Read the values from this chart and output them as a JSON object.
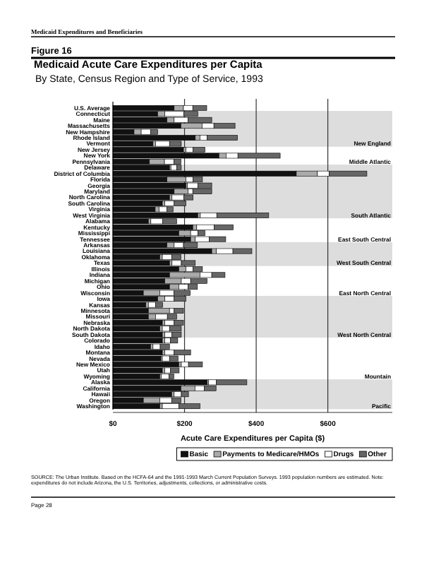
{
  "chart_data": {
    "type": "bar",
    "orientation": "horizontal",
    "stacked": true,
    "title": "Medicaid Acute Care Expenditures per Capita",
    "subtitle": "By State, Census Region and Type of Service, 1993",
    "xlabel": "Acute Care Expenditures per Capita ($)",
    "categories": [
      "U.S. Average",
      "Connecticut",
      "Maine",
      "Massachusetts",
      "New Hampshire",
      "Rhode Island",
      "Vermont",
      "New Jersey",
      "New York",
      "Pennsylvania",
      "Delaware",
      "District of Columbia",
      "Florida",
      "Georgia",
      "Maryland",
      "North Carolina",
      "South Carolina",
      "Virginia",
      "West Virginia",
      "Alabama",
      "Kentucky",
      "Mississippi",
      "Tennessee",
      "Arkansas",
      "Louisiana",
      "Oklahoma",
      "Texas",
      "Illinois",
      "Indiana",
      "Michigan",
      "Ohio",
      "Wisconsin",
      "Iowa",
      "Kansas",
      "Minnesota",
      "Missouri",
      "Nebraska",
      "North Dakota",
      "South Dakota",
      "Colorado",
      "Idaho",
      "Montana",
      "Nevada",
      "New Mexico",
      "Utah",
      "Wyoming",
      "Alaska",
      "California",
      "Hawaii",
      "Oregon",
      "Washington"
    ],
    "series": [
      {
        "name": "Basic",
        "color": "#111111",
        "values": [
          171,
          125,
          151,
          190,
          59,
          230,
          112,
          197,
          296,
          102,
          158,
          512,
          151,
          204,
          171,
          158,
          138,
          118,
          237,
          99,
          223,
          184,
          217,
          151,
          276,
          131,
          158,
          184,
          158,
          145,
          158,
          85,
          125,
          92,
          99,
          99,
          138,
          131,
          138,
          138,
          105,
          138,
          134,
          184,
          138,
          131,
          263,
          190,
          164,
          85,
          131
        ]
      },
      {
        "name": "Payments to Medicare/HMOs",
        "color": "#aaaaaa",
        "values": [
          26,
          20,
          20,
          59,
          20,
          13,
          7,
          7,
          20,
          42,
          4,
          59,
          53,
          4,
          39,
          7,
          7,
          11,
          7,
          7,
          11,
          33,
          13,
          20,
          13,
          7,
          7,
          20,
          85,
          46,
          26,
          46,
          20,
          7,
          59,
          20,
          7,
          7,
          7,
          7,
          7,
          7,
          4,
          7,
          7,
          4,
          4,
          39,
          7,
          46,
          7
        ]
      },
      {
        "name": "Drugs",
        "color": "#ffffff",
        "values": [
          26,
          53,
          39,
          33,
          26,
          20,
          39,
          20,
          33,
          26,
          16,
          33,
          20,
          29,
          13,
          33,
          26,
          22,
          46,
          33,
          49,
          20,
          39,
          26,
          46,
          26,
          26,
          20,
          33,
          26,
          26,
          39,
          26,
          20,
          13,
          33,
          26,
          20,
          20,
          16,
          20,
          26,
          20,
          20,
          16,
          22,
          22,
          26,
          20,
          33,
          46
        ]
      },
      {
        "name": "Other",
        "color": "#666666",
        "values": [
          39,
          39,
          66,
          59,
          20,
          85,
          33,
          33,
          118,
          20,
          13,
          105,
          26,
          39,
          53,
          26,
          33,
          17,
          145,
          39,
          53,
          20,
          46,
          39,
          53,
          26,
          39,
          26,
          37,
          46,
          26,
          46,
          33,
          20,
          26,
          26,
          26,
          33,
          26,
          20,
          26,
          46,
          24,
          39,
          24,
          13,
          85,
          33,
          20,
          26,
          59
        ]
      }
    ],
    "xlim": [
      0,
      780
    ],
    "xticks": [
      {
        "value": 0,
        "label": "$0"
      },
      {
        "value": 200,
        "label": "$200"
      },
      {
        "value": 400,
        "label": "$400"
      },
      {
        "value": 600,
        "label": "$600"
      }
    ],
    "grid": "x",
    "legend": "bottom",
    "annotations": [
      "Medicaid Expenditures and Beneficiaries",
      "Figure 16",
      "SOURCE: The Urban Institute.  Based on the HCFA-64 and the 1991-1993 March Current Population Surveys.  1993 population numbers are estimated.  Note: expenditures do not include Arizona, the U.S. Territories, adjustments, collections, or administrative costs.",
      "Page 28",
      "Middle Atlantic",
      "East South Central",
      "East North Central",
      "Mountain"
    ],
    "bands": [
      {
        "axis": "y",
        "from": "Connecticut",
        "to": "Vermont",
        "label": "New England",
        "color": "#dddddd"
      },
      {
        "axis": "y",
        "from": "Delaware",
        "to": "West Virginia",
        "label": "South Atlantic",
        "color": "#dddddd"
      },
      {
        "axis": "y",
        "from": "Arkansas",
        "to": "Texas",
        "label": "West South Central",
        "color": "#dddddd"
      },
      {
        "axis": "y",
        "from": "Iowa",
        "to": "South Dakota",
        "label": "West North Central",
        "color": "#dddddd"
      },
      {
        "axis": "y",
        "from": "Alaska",
        "to": "Washington",
        "label": "Pacific",
        "color": "#dddddd"
      }
    ]
  }
}
